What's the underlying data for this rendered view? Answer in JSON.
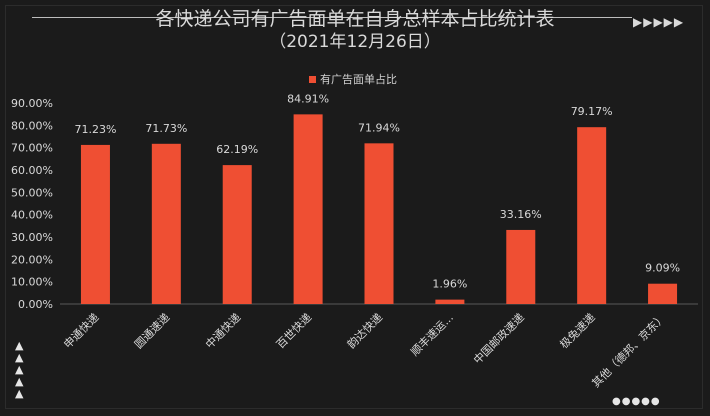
{
  "header": {
    "title": "各快递公司有广告面单在自身总样本占比统计表",
    "subtitle": "（2021年12月26日）"
  },
  "colors": {
    "bar": "#ef4f33",
    "background": "#1b1b1b",
    "text": "#d9d9d9"
  },
  "chart_data": {
    "type": "bar",
    "title": "各快递公司有广告面单在自身总样本占比统计表（2021年12月26日）",
    "categories": [
      "申通快递",
      "圆通速递",
      "中通快递",
      "百世快递",
      "韵达快递",
      "顺丰速运...",
      "中国邮政速递",
      "极兔速递",
      "其他（德邦、京东）"
    ],
    "series": [
      {
        "name": "有广告面单占比",
        "values": [
          71.23,
          71.73,
          62.19,
          84.91,
          71.94,
          1.96,
          33.16,
          79.17,
          9.09
        ]
      }
    ],
    "data_labels": [
      "71.23%",
      "71.73%",
      "62.19%",
      "84.91%",
      "71.94%",
      "1.96%",
      "33.16%",
      "79.17%",
      "9.09%"
    ],
    "yticks": [
      "0.00%",
      "10.00%",
      "20.00%",
      "30.00%",
      "40.00%",
      "50.00%",
      "60.00%",
      "70.00%",
      "80.00%",
      "90.00%"
    ],
    "ylim": [
      0,
      90
    ],
    "legend": "top-center",
    "grid": false
  }
}
